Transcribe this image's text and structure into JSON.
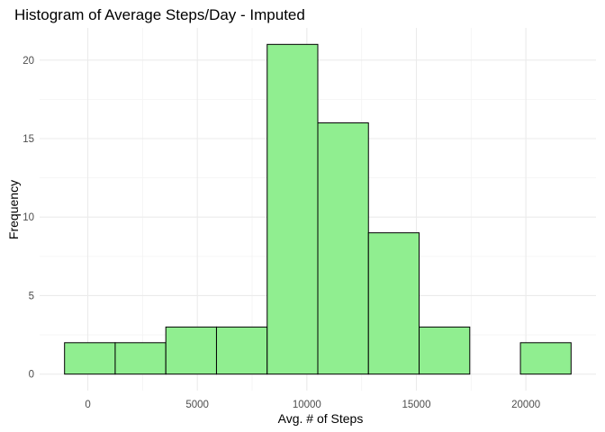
{
  "chart_data": {
    "type": "bar",
    "title": "Histogram of Average Steps/Day - Imputed",
    "xlabel": "Avg. # of Steps",
    "ylabel": "Frequency",
    "bin_edges": [
      -1062,
      1250,
      3562,
      5875,
      8188,
      10500,
      12812,
      15125,
      17438,
      19750,
      22062
    ],
    "values": [
      2,
      2,
      3,
      3,
      21,
      16,
      9,
      3,
      0,
      2
    ],
    "xlim": [
      -2200,
      23200
    ],
    "ylim": [
      -1.05,
      22.05
    ],
    "x_ticks": [
      0,
      5000,
      10000,
      15000,
      20000
    ],
    "x_tick_labels": [
      "0",
      "5000",
      "10000",
      "15000",
      "20000"
    ],
    "y_ticks": [
      0,
      5,
      10,
      15,
      20
    ],
    "y_tick_labels": [
      "0",
      "5",
      "10",
      "15",
      "20"
    ],
    "grid": true,
    "bar_fill": "#90ee90",
    "bar_outline": "#000000",
    "grid_color": "#ebebeb"
  }
}
